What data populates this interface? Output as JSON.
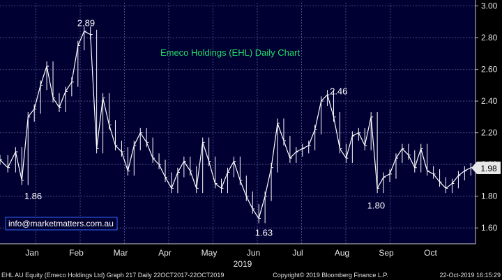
{
  "chart_data": {
    "type": "line",
    "title": "Emeco Holdings (EHL) Daily Chart",
    "x_tick_labels": [
      "Jan",
      "Feb",
      "Mar",
      "Apr",
      "May",
      "Jun",
      "Jul",
      "Aug",
      "Sep",
      "Oct"
    ],
    "x_year_label": "2019",
    "y_ticks": [
      1.6,
      1.8,
      2.0,
      2.2,
      2.4,
      2.6,
      2.8,
      3.0
    ],
    "ylim": [
      1.5,
      3.02
    ],
    "xlim": [
      0,
      305
    ],
    "grid": true,
    "last_price": 1.98,
    "series": [
      {
        "x": [
          0,
          5,
          10,
          14,
          18,
          22,
          26,
          30,
          34,
          38,
          42,
          46,
          50,
          54,
          58,
          62,
          66,
          70,
          74,
          78,
          82,
          86,
          90,
          94,
          98,
          102,
          106,
          110,
          114,
          118,
          122,
          126,
          130,
          134,
          138,
          142,
          146,
          150,
          154,
          158,
          162,
          166,
          170,
          174,
          178,
          182,
          186,
          190,
          194,
          198,
          202,
          206,
          210,
          214,
          218,
          222,
          226,
          230,
          234,
          238,
          242,
          246,
          250,
          254,
          258,
          262,
          266,
          270,
          274,
          278,
          282,
          286,
          290,
          294,
          298,
          302
        ],
        "values": [
          2.03,
          1.98,
          2.08,
          1.9,
          2.3,
          2.35,
          2.5,
          2.62,
          2.42,
          2.36,
          2.46,
          2.52,
          2.75,
          2.84,
          2.82,
          2.1,
          2.42,
          2.25,
          2.12,
          2.08,
          1.96,
          2.12,
          2.2,
          2.14,
          2.04,
          2.0,
          1.92,
          1.85,
          1.95,
          2.02,
          1.96,
          1.85,
          2.14,
          2.02,
          1.88,
          1.85,
          1.95,
          2.02,
          1.9,
          1.8,
          1.72,
          1.66,
          1.8,
          1.98,
          2.26,
          2.15,
          2.04,
          2.08,
          2.1,
          2.12,
          2.22,
          2.4,
          2.44,
          2.3,
          2.1,
          2.04,
          2.18,
          2.2,
          2.12,
          2.3,
          1.85,
          1.92,
          1.94,
          2.04,
          2.1,
          2.06,
          1.98,
          2.1,
          1.96,
          1.94,
          1.89,
          1.85,
          1.88,
          1.93,
          1.96,
          1.98
        ]
      }
    ],
    "annotations": [
      {
        "text": "2.89",
        "x": 46,
        "y": 2.89
      },
      {
        "text": "2.46",
        "x": 208,
        "y": 2.46
      },
      {
        "text": "1.86",
        "x": 12,
        "y": 1.86
      },
      {
        "text": "1.63",
        "x": 160,
        "y": 1.63
      },
      {
        "text": "1.80",
        "x": 232,
        "y": 1.8
      }
    ]
  },
  "contact_email": "info@marketmatters.com.au",
  "footer": {
    "left": "EHL AU Equity (Emeco Holdings Ltd) Graph 217  Daily 22OCT2017-22OCT2019",
    "center": "Copyright© 2019 Bloomberg Finance L.P.",
    "right": "22-Oct-2019 16:15:29"
  },
  "colors": {
    "background": "#000000",
    "plot_background": "#000033",
    "grid": "#4a4a88",
    "price": "#ffffff",
    "title": "#22dd66",
    "axis_text": "#e8e8e8",
    "last_price_bg": "#e8e8e8",
    "email_border": "#3366ff"
  }
}
